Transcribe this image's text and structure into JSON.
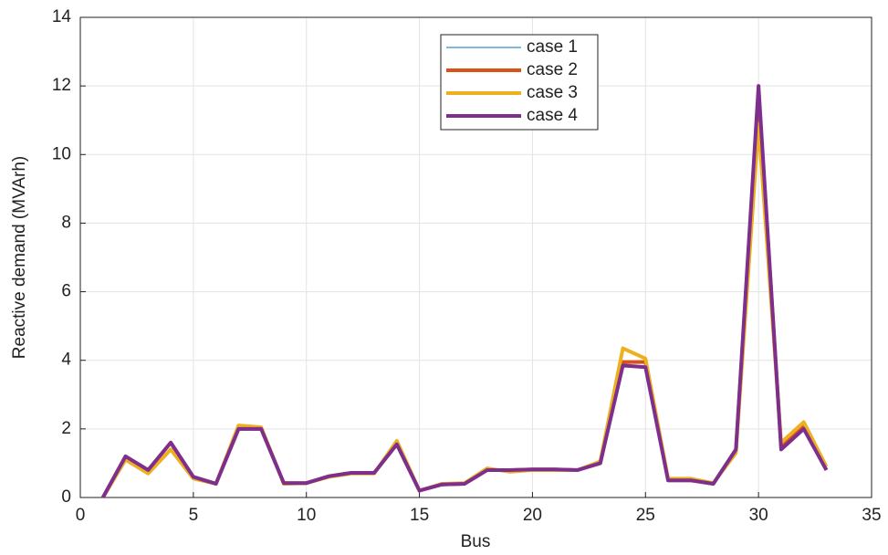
{
  "chart_data": {
    "type": "line",
    "xlabel": "Bus",
    "ylabel": "Reactive demand (MVArh)",
    "x": [
      1,
      2,
      3,
      4,
      5,
      6,
      7,
      8,
      9,
      10,
      11,
      12,
      13,
      14,
      15,
      16,
      17,
      18,
      19,
      20,
      21,
      22,
      23,
      24,
      25,
      26,
      27,
      28,
      29,
      30,
      31,
      32,
      33
    ],
    "series": [
      {
        "name": "case 1",
        "color": "#0072bd",
        "values": [
          0,
          1.2,
          0.8,
          1.6,
          0.6,
          0.4,
          2.0,
          2.0,
          0.42,
          0.42,
          0.62,
          0.72,
          0.72,
          1.55,
          0.2,
          0.38,
          0.4,
          0.8,
          0.8,
          0.82,
          0.82,
          0.8,
          1.0,
          3.95,
          3.95,
          0.5,
          0.5,
          0.4,
          1.4,
          11.8,
          1.5,
          2.1,
          0.8
        ]
      },
      {
        "name": "case 2",
        "color": "#d95319",
        "values": [
          0,
          1.2,
          0.8,
          1.6,
          0.6,
          0.4,
          2.0,
          2.0,
          0.42,
          0.42,
          0.62,
          0.72,
          0.72,
          1.55,
          0.2,
          0.38,
          0.4,
          0.8,
          0.8,
          0.82,
          0.82,
          0.8,
          1.0,
          3.95,
          3.95,
          0.5,
          0.5,
          0.4,
          1.4,
          11.8,
          1.5,
          2.1,
          0.8
        ]
      },
      {
        "name": "case 3",
        "color": "#edb120",
        "values": [
          0,
          1.1,
          0.7,
          1.4,
          0.55,
          0.4,
          2.1,
          2.05,
          0.4,
          0.42,
          0.6,
          0.7,
          0.7,
          1.65,
          0.2,
          0.4,
          0.42,
          0.85,
          0.75,
          0.8,
          0.8,
          0.8,
          1.05,
          4.35,
          4.05,
          0.55,
          0.55,
          0.42,
          1.3,
          10.9,
          1.6,
          2.2,
          0.9
        ]
      },
      {
        "name": "case 4",
        "color": "#7e2f8e",
        "values": [
          0,
          1.2,
          0.8,
          1.6,
          0.6,
          0.4,
          2.0,
          2.0,
          0.42,
          0.42,
          0.62,
          0.72,
          0.72,
          1.55,
          0.2,
          0.38,
          0.4,
          0.8,
          0.8,
          0.82,
          0.82,
          0.8,
          1.0,
          3.85,
          3.8,
          0.5,
          0.5,
          0.4,
          1.4,
          12.0,
          1.4,
          2.0,
          0.8
        ]
      }
    ],
    "xlim": [
      0,
      35
    ],
    "xticks": [
      0,
      5,
      10,
      15,
      20,
      25,
      30,
      35
    ],
    "ylim": [
      0,
      14
    ],
    "yticks": [
      0,
      2,
      4,
      6,
      8,
      10,
      12,
      14
    ],
    "grid": true,
    "legend": "top"
  }
}
